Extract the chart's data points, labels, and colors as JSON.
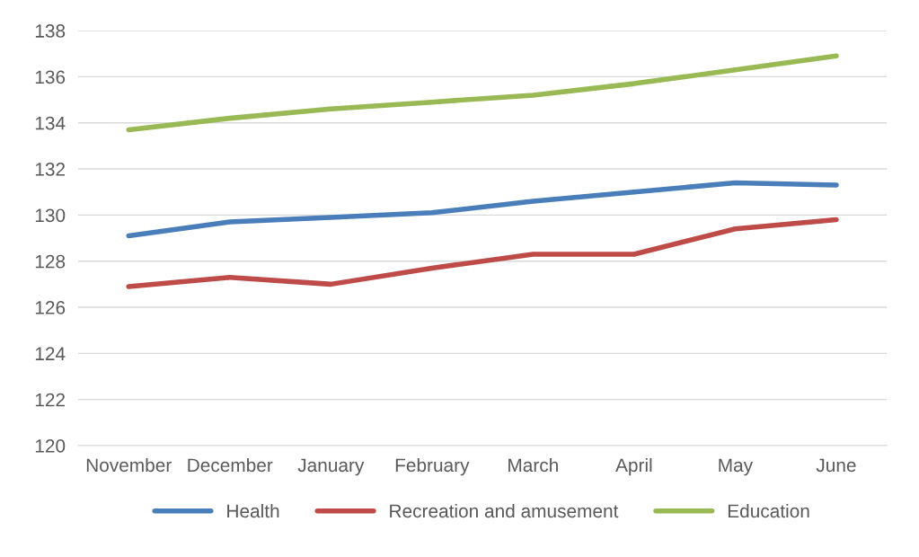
{
  "chart_data": {
    "type": "line",
    "categories": [
      "November",
      "December",
      "January",
      "February",
      "March",
      "April",
      "May",
      "June"
    ],
    "series": [
      {
        "name": "Health",
        "color": "#4a7ebb",
        "values": [
          129.1,
          129.7,
          129.9,
          130.1,
          130.6,
          131.0,
          131.4,
          131.3
        ]
      },
      {
        "name": "Recreation and amusement",
        "color": "#be4b48",
        "values": [
          126.9,
          127.3,
          127.0,
          127.7,
          128.3,
          128.3,
          129.4,
          129.8
        ]
      },
      {
        "name": "Education",
        "color": "#98b954",
        "values": [
          133.7,
          134.2,
          134.6,
          134.9,
          135.2,
          135.7,
          136.3,
          136.9
        ]
      }
    ],
    "ylim": [
      120,
      138
    ],
    "yticks": [
      120,
      122,
      124,
      126,
      128,
      130,
      132,
      134,
      136,
      138
    ],
    "grid": "y",
    "legend": "bottom",
    "marker": "none",
    "line_style": "solid"
  }
}
